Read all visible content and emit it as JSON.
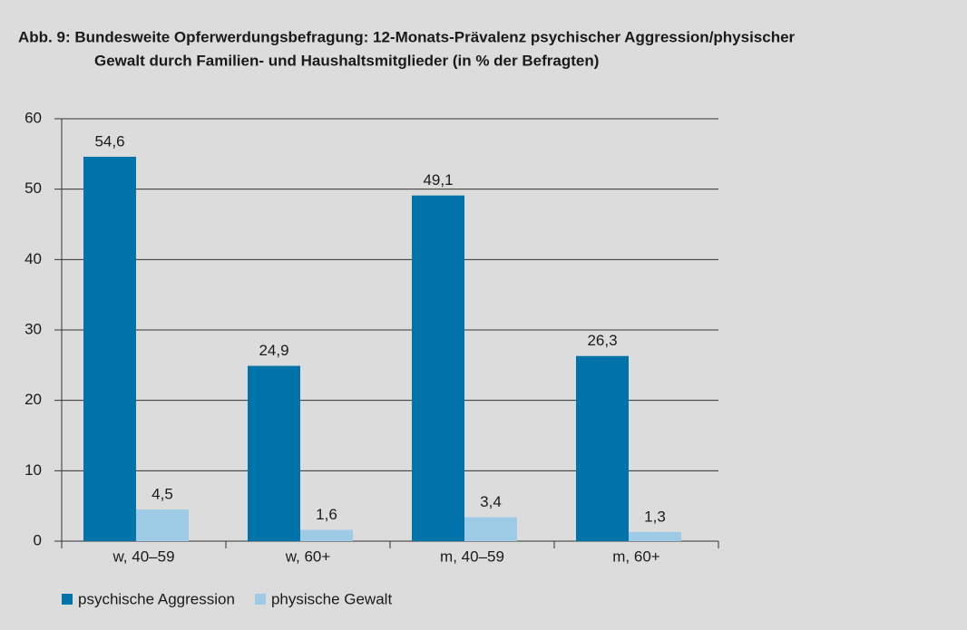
{
  "chart_data": {
    "type": "bar",
    "title": [
      "Abb. 9: Bundesweite Opferwerdungsbefragung: 12-Monats-Prävalenz psychischer Aggression/physischer",
      "Gewalt durch Familien- und Haushaltsmitglieder (in % der Befragten)"
    ],
    "categories": [
      "w, 40–59",
      "w, 60+",
      "m, 40–59",
      "m, 60+"
    ],
    "series": [
      {
        "name": "psychische Aggression",
        "color": "#0073a8",
        "values": [
          54.6,
          24.9,
          49.1,
          26.3
        ],
        "value_labels": [
          "54,6",
          "24,9",
          "49,1",
          "26,3"
        ]
      },
      {
        "name": "physische Gewalt",
        "color": "#9dcbe6",
        "values": [
          4.5,
          1.6,
          3.4,
          1.3
        ],
        "value_labels": [
          "4,5",
          "1,6",
          "3,4",
          "1,3"
        ]
      }
    ],
    "ylim": [
      0,
      60
    ],
    "yticks": [
      0,
      10,
      20,
      30,
      40,
      50,
      60
    ],
    "grid": true,
    "legend": "bottom"
  }
}
